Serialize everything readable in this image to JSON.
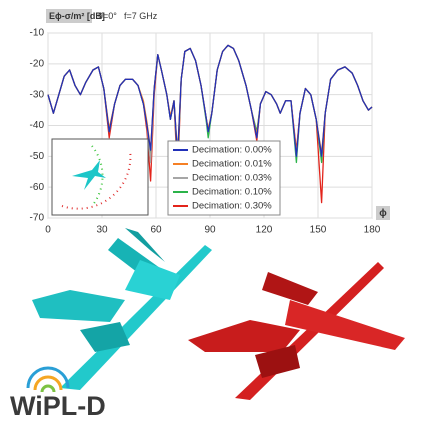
{
  "chart_data": {
    "type": "line",
    "y_label": "Eϕ-σ/m² [dB]",
    "annotations": [
      "θ=0°",
      "f=7 GHz"
    ],
    "x_label": "ϕ",
    "x": [
      0,
      3,
      6,
      9,
      12,
      15,
      18,
      21,
      25,
      28,
      31,
      34,
      37,
      40,
      43,
      47,
      50,
      53,
      55,
      57,
      59,
      61,
      63,
      66,
      68,
      70,
      72,
      74,
      76,
      79,
      82,
      85,
      88,
      89,
      91,
      94,
      97,
      100,
      103,
      106,
      110,
      113,
      116,
      118,
      121,
      124,
      127,
      129,
      132,
      135,
      138,
      140,
      143,
      146,
      149,
      152,
      154,
      157,
      161,
      165,
      169,
      172,
      175,
      178,
      180
    ],
    "series": [
      {
        "name": "Decimation: 0.30%",
        "color": "#e3241b",
        "values": [
          -30,
          -36,
          -30,
          -24,
          -22,
          -27,
          -30,
          -26,
          -22,
          -21,
          -28,
          -44,
          -33,
          -27,
          -25,
          -25,
          -27,
          -33,
          -42,
          -58,
          -30,
          -17,
          -22,
          -30,
          -38,
          -32,
          -57,
          -25,
          -16,
          -15,
          -19,
          -27,
          -38,
          -42,
          -36,
          -22,
          -16,
          -14,
          -15,
          -19,
          -27,
          -35,
          -45,
          -33,
          -29,
          -30,
          -33,
          -36,
          -32,
          -32,
          -48,
          -36,
          -28,
          -30,
          -38,
          -65,
          -36,
          -25,
          -22,
          -21,
          -23,
          -27,
          -32,
          -35,
          -34
        ]
      },
      {
        "name": "Decimation: 0.10%",
        "color": "#2bb34a",
        "values": [
          -30,
          -36,
          -30,
          -24,
          -22,
          -27,
          -30,
          -26,
          -22,
          -21,
          -28,
          -42,
          -33,
          -27,
          -25,
          -25,
          -27,
          -33,
          -40,
          -50,
          -28,
          -17,
          -22,
          -30,
          -38,
          -32,
          -52,
          -25,
          -16,
          -15,
          -19,
          -27,
          -39,
          -44,
          -36,
          -22,
          -16,
          -14,
          -15,
          -19,
          -27,
          -35,
          -42,
          -33,
          -29,
          -30,
          -33,
          -36,
          -32,
          -32,
          -52,
          -36,
          -28,
          -30,
          -38,
          -52,
          -36,
          -25,
          -22,
          -21,
          -23,
          -27,
          -32,
          -35,
          -34
        ]
      },
      {
        "name": "Decimation: 0.03%",
        "color": "#a6a6a6",
        "values": [
          -30,
          -36,
          -30,
          -24,
          -22,
          -27,
          -30,
          -26,
          -22,
          -21,
          -28,
          -42,
          -33,
          -27,
          -25,
          -25,
          -27,
          -33,
          -40,
          -52,
          -28,
          -17,
          -22,
          -30,
          -38,
          -32,
          -50,
          -25,
          -16,
          -15,
          -19,
          -27,
          -38,
          -42,
          -36,
          -22,
          -16,
          -14,
          -15,
          -19,
          -27,
          -35,
          -44,
          -33,
          -29,
          -30,
          -33,
          -36,
          -32,
          -32,
          -50,
          -36,
          -28,
          -30,
          -38,
          -50,
          -36,
          -25,
          -22,
          -21,
          -23,
          -27,
          -32,
          -35,
          -34
        ]
      },
      {
        "name": "Decimation: 0.01%",
        "color": "#f58025",
        "values": [
          -30,
          -36,
          -30,
          -24,
          -22,
          -27,
          -30,
          -26,
          -22,
          -21,
          -28,
          -41,
          -33,
          -27,
          -25,
          -25,
          -27,
          -32,
          -39,
          -48,
          -28,
          -17,
          -22,
          -30,
          -37,
          -32,
          -49,
          -25,
          -16,
          -15,
          -19,
          -27,
          -38,
          -41,
          -36,
          -22,
          -16,
          -14,
          -15,
          -19,
          -27,
          -35,
          -43,
          -33,
          -29,
          -30,
          -33,
          -36,
          -32,
          -32,
          -49,
          -36,
          -28,
          -30,
          -38,
          -49,
          -36,
          -25,
          -22,
          -21,
          -23,
          -27,
          -32,
          -35,
          -34
        ]
      },
      {
        "name": "Decimation: 0.00%",
        "color": "#2130b8",
        "values": [
          -30,
          -36,
          -30,
          -24,
          -22,
          -27,
          -30,
          -26,
          -22,
          -21,
          -28,
          -42,
          -33,
          -27,
          -25,
          -25,
          -27,
          -33,
          -40,
          -48,
          -28,
          -17,
          -22,
          -30,
          -38,
          -32,
          -50,
          -25,
          -16,
          -15,
          -19,
          -27,
          -38,
          -42,
          -36,
          -22,
          -16,
          -14,
          -15,
          -19,
          -27,
          -35,
          -44,
          -33,
          -29,
          -30,
          -33,
          -36,
          -32,
          -32,
          -50,
          -36,
          -28,
          -30,
          -38,
          -50,
          -36,
          -25,
          -22,
          -21,
          -23,
          -27,
          -32,
          -35,
          -34
        ]
      }
    ],
    "legend_order": [
      4,
      3,
      2,
      1,
      0
    ],
    "legend": "lower center",
    "xlim": [
      0,
      180
    ],
    "xticks": [
      0,
      30,
      60,
      90,
      120,
      150,
      180
    ],
    "ylim": [
      -70,
      -10
    ],
    "yticks": [
      -10,
      -20,
      -30,
      -40,
      -50,
      -60,
      -70
    ],
    "grid": true
  },
  "logo": "WiPL-D"
}
